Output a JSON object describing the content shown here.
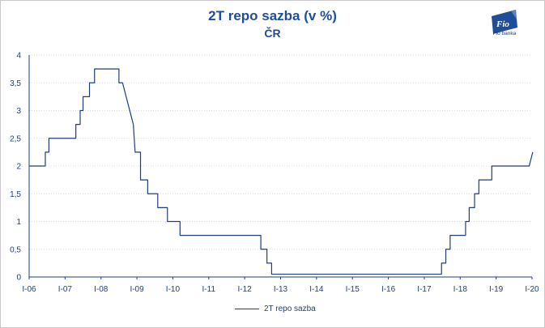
{
  "chart_data": {
    "type": "line",
    "title": "2T repo sazba (v %)",
    "subtitle": "ČR",
    "xlabel": "",
    "ylabel": "",
    "x_ticks": [
      "I-06",
      "I-07",
      "I-08",
      "I-09",
      "I-10",
      "I-11",
      "I-12",
      "I-13",
      "I-14",
      "I-15",
      "I-16",
      "I-17",
      "I-18",
      "I-19",
      "I-20"
    ],
    "y_ticks": [
      "0",
      "0,5",
      "1",
      "1,5",
      "2",
      "2,5",
      "3",
      "3,5",
      "4"
    ],
    "ylim": [
      0,
      4
    ],
    "xlim": [
      2006.0,
      2020.0
    ],
    "grid": true,
    "legend_position": "bottom",
    "series": [
      {
        "name": "2T repo sazba",
        "color": "#1f3e7a",
        "x": [
          2006.0,
          2006.45,
          2006.45,
          2006.55,
          2006.55,
          2006.65,
          2006.65,
          2007.3,
          2007.3,
          2007.42,
          2007.42,
          2007.5,
          2007.5,
          2007.6,
          2007.6,
          2007.68,
          2007.68,
          2007.82,
          2007.82,
          2007.92,
          2007.92,
          2008.1,
          2008.1,
          2008.5,
          2008.5,
          2008.6,
          2008.6,
          2008.9,
          2008.95,
          2009.1,
          2009.1,
          2009.3,
          2009.3,
          2009.4,
          2009.4,
          2009.58,
          2009.58,
          2009.85,
          2009.85,
          2010.2,
          2010.2,
          2012.45,
          2012.45,
          2012.62,
          2012.62,
          2012.75,
          2012.75,
          2012.87,
          2012.87,
          2017.35,
          2017.35,
          2017.48,
          2017.48,
          2017.6,
          2017.6,
          2017.72,
          2017.72,
          2017.86,
          2017.86,
          2018.15,
          2018.15,
          2018.25,
          2018.25,
          2018.4,
          2018.4,
          2018.52,
          2018.52,
          2018.62,
          2018.62,
          2018.88,
          2018.88,
          2019.35,
          2019.35,
          2019.92,
          2020.02
        ],
        "values": [
          2.0,
          2.0,
          2.25,
          2.25,
          2.5,
          2.5,
          2.5,
          2.5,
          2.75,
          2.75,
          3.0,
          3.0,
          3.25,
          3.25,
          3.25,
          3.25,
          3.5,
          3.5,
          3.75,
          3.75,
          3.75,
          3.75,
          3.75,
          3.75,
          3.5,
          3.5,
          3.5,
          2.75,
          2.25,
          2.25,
          1.75,
          1.75,
          1.5,
          1.5,
          1.5,
          1.5,
          1.25,
          1.25,
          1.0,
          1.0,
          0.75,
          0.75,
          0.5,
          0.5,
          0.25,
          0.25,
          0.05,
          0.05,
          0.05,
          0.05,
          0.05,
          0.05,
          0.25,
          0.25,
          0.5,
          0.5,
          0.75,
          0.75,
          0.75,
          0.75,
          1.0,
          1.0,
          1.25,
          1.25,
          1.5,
          1.5,
          1.75,
          1.75,
          1.75,
          1.75,
          2.0,
          2.0,
          2.0,
          2.0,
          2.25
        ]
      }
    ]
  },
  "logo": {
    "text": "Fio banka",
    "mark": "Fio",
    "color": "#1f4e99"
  }
}
